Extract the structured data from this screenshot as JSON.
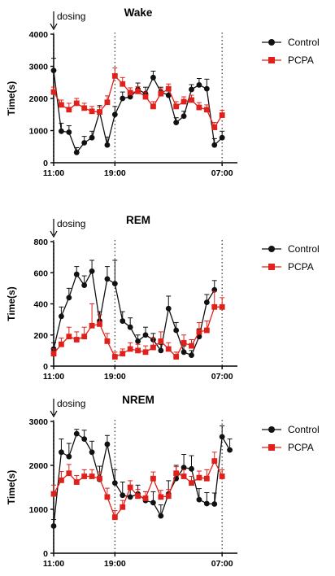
{
  "colors": {
    "control": "#111111",
    "pcpa": "#e0201b"
  },
  "chart_data": [
    {
      "type": "line",
      "title": "Wake",
      "ylabel": "Time(s)",
      "annotation": "dosing",
      "ylim": [
        0,
        4000
      ],
      "yticks": [
        "0",
        "1000",
        "2000",
        "3000",
        "4000"
      ],
      "xticks": [
        "11:00",
        "19:00",
        "07:00"
      ],
      "xlim": [
        0,
        24
      ],
      "x_tick_positions": [
        0,
        8,
        22
      ],
      "legend_position": "top-right",
      "series": [
        {
          "name": "Control",
          "marker": "circle",
          "x": [
            0,
            1,
            2,
            3,
            4,
            5,
            6,
            7,
            8,
            9,
            10,
            11,
            12,
            13,
            14,
            15,
            16,
            17,
            18,
            19,
            20,
            21,
            22,
            23,
            24
          ],
          "values": [
            2870,
            980,
            950,
            320,
            620,
            780,
            1580,
            550,
            1500,
            2000,
            2050,
            2280,
            2150,
            2650,
            2200,
            2100,
            1250,
            1450,
            2280,
            2420,
            2300,
            550,
            780,
            null,
            null
          ],
          "errors": [
            380,
            250,
            200,
            150,
            200,
            200,
            200,
            250,
            250,
            200,
            200,
            200,
            200,
            200,
            150,
            200,
            150,
            150,
            150,
            200,
            300,
            200,
            200,
            null,
            null
          ]
        },
        {
          "name": "PCPA",
          "marker": "square",
          "x": [
            0,
            1,
            2,
            3,
            4,
            5,
            6,
            7,
            8,
            9,
            10,
            11,
            12,
            13,
            14,
            15,
            16,
            17,
            18,
            19,
            20,
            21,
            22,
            23,
            24
          ],
          "values": [
            2200,
            1800,
            1650,
            1850,
            1700,
            1600,
            1580,
            1880,
            2700,
            2450,
            2180,
            2220,
            2050,
            1750,
            2150,
            2300,
            1750,
            1900,
            1950,
            1720,
            1650,
            1100,
            1480,
            null,
            null
          ],
          "errors": [
            150,
            150,
            200,
            150,
            150,
            150,
            150,
            200,
            250,
            200,
            150,
            150,
            150,
            150,
            150,
            150,
            150,
            150,
            150,
            150,
            150,
            150,
            150,
            null,
            null
          ]
        }
      ]
    },
    {
      "type": "line",
      "title": "REM",
      "ylabel": "Time(s)",
      "annotation": "dosing",
      "ylim": [
        0,
        800
      ],
      "yticks": [
        "0",
        "200",
        "400",
        "600",
        "800"
      ],
      "xticks": [
        "11:00",
        "19:00",
        "07:00"
      ],
      "xlim": [
        0,
        24
      ],
      "x_tick_positions": [
        0,
        8,
        22
      ],
      "legend_position": "top-right",
      "series": [
        {
          "name": "Control",
          "marker": "circle",
          "x": [
            0,
            1,
            2,
            3,
            4,
            5,
            6,
            7,
            8,
            9,
            10,
            11,
            12,
            13,
            14,
            15,
            16,
            17,
            18,
            19,
            20,
            21,
            22,
            23,
            24
          ],
          "values": [
            110,
            320,
            440,
            590,
            520,
            610,
            290,
            560,
            530,
            290,
            250,
            160,
            200,
            170,
            100,
            370,
            230,
            90,
            70,
            190,
            410,
            490,
            null,
            null,
            null
          ],
          "errors": [
            40,
            60,
            60,
            50,
            60,
            70,
            60,
            80,
            150,
            60,
            60,
            40,
            50,
            40,
            40,
            80,
            50,
            40,
            30,
            50,
            50,
            60,
            null,
            null,
            null
          ]
        },
        {
          "name": "PCPA",
          "marker": "square",
          "x": [
            0,
            1,
            2,
            3,
            4,
            5,
            6,
            7,
            8,
            9,
            10,
            11,
            12,
            13,
            14,
            15,
            16,
            17,
            18,
            19,
            20,
            21,
            22,
            23,
            24
          ],
          "values": [
            80,
            140,
            190,
            170,
            190,
            260,
            270,
            160,
            60,
            80,
            110,
            100,
            90,
            120,
            160,
            110,
            60,
            150,
            130,
            220,
            230,
            380,
            380,
            null,
            null
          ],
          "errors": [
            30,
            40,
            60,
            50,
            60,
            140,
            60,
            50,
            30,
            30,
            40,
            40,
            40,
            60,
            60,
            40,
            30,
            50,
            40,
            60,
            60,
            100,
            60,
            null,
            null
          ]
        }
      ]
    },
    {
      "type": "line",
      "title": "NREM",
      "ylabel": "Time(s)",
      "annotation": "dosing",
      "ylim": [
        0,
        3000
      ],
      "yticks": [
        "0",
        "1000",
        "2000",
        "3000"
      ],
      "xticks": [
        "11:00",
        "19:00",
        "07:00"
      ],
      "xlim": [
        0,
        24
      ],
      "x_tick_positions": [
        0,
        8,
        22
      ],
      "legend_position": "top-right",
      "series": [
        {
          "name": "Control",
          "marker": "circle",
          "x": [
            0,
            1,
            2,
            3,
            4,
            5,
            6,
            7,
            8,
            9,
            10,
            11,
            12,
            13,
            14,
            15,
            16,
            17,
            18,
            19,
            20,
            21,
            22,
            23,
            24
          ],
          "values": [
            620,
            2300,
            2200,
            2720,
            2600,
            2300,
            1680,
            2480,
            1600,
            1320,
            1280,
            1350,
            1200,
            1150,
            850,
            1350,
            1700,
            1950,
            1920,
            1220,
            1130,
            1120,
            2650,
            2350,
            null
          ],
          "errors": [
            150,
            300,
            300,
            100,
            200,
            250,
            300,
            200,
            300,
            300,
            250,
            200,
            200,
            250,
            250,
            300,
            300,
            300,
            300,
            250,
            250,
            250,
            250,
            250,
            null
          ]
        },
        {
          "name": "PCPA",
          "marker": "square",
          "x": [
            0,
            1,
            2,
            3,
            4,
            5,
            6,
            7,
            8,
            9,
            10,
            11,
            12,
            13,
            14,
            15,
            16,
            17,
            18,
            19,
            20,
            21,
            22,
            23,
            24
          ],
          "values": [
            1350,
            1660,
            1820,
            1620,
            1750,
            1750,
            1700,
            1280,
            820,
            1050,
            1500,
            1300,
            1250,
            1700,
            1280,
            1300,
            1820,
            1750,
            1600,
            1720,
            1700,
            2100,
            1750,
            null,
            null
          ],
          "errors": [
            200,
            200,
            200,
            150,
            150,
            150,
            150,
            200,
            150,
            150,
            150,
            150,
            150,
            150,
            150,
            150,
            150,
            150,
            150,
            150,
            200,
            200,
            150,
            null,
            null
          ]
        }
      ]
    }
  ]
}
